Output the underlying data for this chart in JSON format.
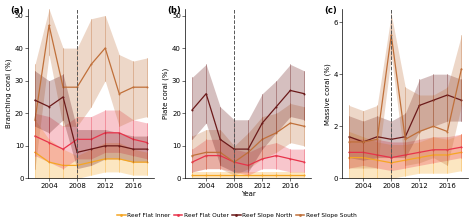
{
  "years": [
    2002,
    2004,
    2006,
    2008,
    2010,
    2012,
    2014,
    2016,
    2018
  ],
  "vline_x": 2008,
  "panel_a": {
    "title": "(a)",
    "ylabel": "Branching coral (%)",
    "ylim": [
      0,
      52
    ],
    "yticks": [
      0,
      10,
      20,
      30,
      40,
      50
    ],
    "reef_flat_inner": {
      "mean": [
        8,
        5,
        4,
        4,
        5,
        6,
        6,
        5,
        5
      ],
      "upper": [
        18,
        12,
        9,
        7,
        9,
        11,
        11,
        9,
        8
      ],
      "lower": [
        0,
        0,
        0,
        0,
        1,
        2,
        2,
        1,
        1
      ]
    },
    "reef_flat_outer": {
      "mean": [
        13,
        11,
        9,
        12,
        12,
        14,
        14,
        12,
        11
      ],
      "upper": [
        20,
        19,
        16,
        19,
        19,
        21,
        21,
        18,
        17
      ],
      "lower": [
        7,
        5,
        3,
        6,
        6,
        8,
        8,
        7,
        6
      ]
    },
    "reef_slope_north": {
      "mean": [
        24,
        22,
        25,
        8,
        9,
        10,
        10,
        9,
        9
      ],
      "upper": [
        33,
        30,
        32,
        15,
        15,
        15,
        14,
        13,
        13
      ],
      "lower": [
        16,
        14,
        18,
        3,
        4,
        6,
        6,
        5,
        5
      ]
    },
    "reef_slope_south": {
      "mean": [
        18,
        47,
        28,
        28,
        35,
        40,
        26,
        28,
        28
      ],
      "upper": [
        35,
        52,
        40,
        40,
        49,
        50,
        38,
        36,
        37
      ],
      "lower": [
        3,
        38,
        16,
        16,
        22,
        30,
        16,
        18,
        19
      ]
    }
  },
  "panel_b": {
    "title": "(b)",
    "ylabel": "Plate coral (%)",
    "ylim": [
      0,
      52
    ],
    "yticks": [
      0,
      10,
      20,
      30,
      40,
      50
    ],
    "reef_flat_inner": {
      "mean": [
        1,
        1,
        1,
        1,
        1,
        1,
        1,
        1,
        1
      ],
      "upper": [
        2,
        2,
        2,
        2,
        2,
        2,
        2,
        2,
        2
      ],
      "lower": [
        0,
        0,
        0,
        0,
        0,
        0,
        0,
        0,
        0
      ]
    },
    "reef_flat_outer": {
      "mean": [
        5,
        7,
        7,
        5,
        4,
        6,
        7,
        6,
        5
      ],
      "upper": [
        9,
        12,
        12,
        9,
        8,
        10,
        11,
        9,
        9
      ],
      "lower": [
        2,
        3,
        3,
        2,
        1,
        3,
        3,
        2,
        2
      ]
    },
    "reef_slope_south": {
      "mean": [
        7,
        8,
        8,
        5,
        8,
        12,
        14,
        17,
        16
      ],
      "upper": [
        13,
        15,
        15,
        10,
        14,
        19,
        20,
        23,
        22
      ],
      "lower": [
        2,
        3,
        3,
        1,
        3,
        6,
        8,
        11,
        10
      ]
    },
    "reef_slope_north": {
      "mean": [
        21,
        26,
        12,
        9,
        9,
        17,
        22,
        27,
        26
      ],
      "upper": [
        31,
        35,
        22,
        18,
        18,
        26,
        30,
        35,
        33
      ],
      "lower": [
        12,
        17,
        4,
        2,
        2,
        9,
        14,
        19,
        18
      ]
    }
  },
  "panel_c": {
    "title": "(c)",
    "ylabel": "Massive coral (%)",
    "ylim": [
      0,
      6.5
    ],
    "yticks": [
      0,
      2,
      4,
      6
    ],
    "reef_flat_inner": {
      "mean": [
        0.8,
        0.8,
        0.7,
        0.6,
        0.7,
        0.8,
        0.9,
        0.9,
        1.0
      ],
      "upper": [
        1.8,
        1.6,
        1.4,
        1.3,
        1.3,
        1.4,
        1.6,
        1.5,
        1.7
      ],
      "lower": [
        0.0,
        0.0,
        0.0,
        0.0,
        0.1,
        0.2,
        0.2,
        0.2,
        0.3
      ]
    },
    "reef_flat_outer": {
      "mean": [
        1.0,
        1.0,
        0.9,
        0.8,
        0.9,
        1.0,
        1.1,
        1.1,
        1.2
      ],
      "upper": [
        1.6,
        1.5,
        1.5,
        1.4,
        1.4,
        1.5,
        1.6,
        1.6,
        1.7
      ],
      "lower": [
        0.4,
        0.5,
        0.4,
        0.3,
        0.4,
        0.5,
        0.6,
        0.7,
        0.8
      ]
    },
    "reef_slope_north": {
      "mean": [
        1.6,
        1.4,
        1.6,
        1.5,
        1.6,
        2.8,
        3.0,
        3.2,
        3.0
      ],
      "upper": [
        2.4,
        2.2,
        2.4,
        2.2,
        2.5,
        3.8,
        4.0,
        4.0,
        3.8
      ],
      "lower": [
        0.8,
        0.7,
        0.8,
        0.8,
        0.8,
        1.8,
        2.0,
        2.2,
        2.2
      ]
    },
    "reef_slope_south": {
      "mean": [
        1.4,
        1.4,
        1.5,
        5.5,
        1.5,
        1.8,
        2.0,
        1.8,
        4.2
      ],
      "upper": [
        2.8,
        2.6,
        2.8,
        6.3,
        3.5,
        3.2,
        3.2,
        3.5,
        5.5
      ],
      "lower": [
        0.4,
        0.4,
        0.4,
        4.7,
        0.5,
        0.6,
        0.8,
        0.5,
        2.8
      ]
    }
  },
  "colors": {
    "reef_flat_inner": "#F5A623",
    "reef_flat_outer": "#E8334A",
    "reef_slope_north": "#6B1A1A",
    "reef_slope_south": "#C0703A"
  },
  "alpha_fill": 0.28,
  "legend_labels": [
    "Reef Flat Inner",
    "Reef Flat Outer",
    "Reef Slope North",
    "Reef Slope South"
  ],
  "legend_keys": [
    "reef_flat_inner",
    "reef_flat_outer",
    "reef_slope_north",
    "reef_slope_south"
  ]
}
